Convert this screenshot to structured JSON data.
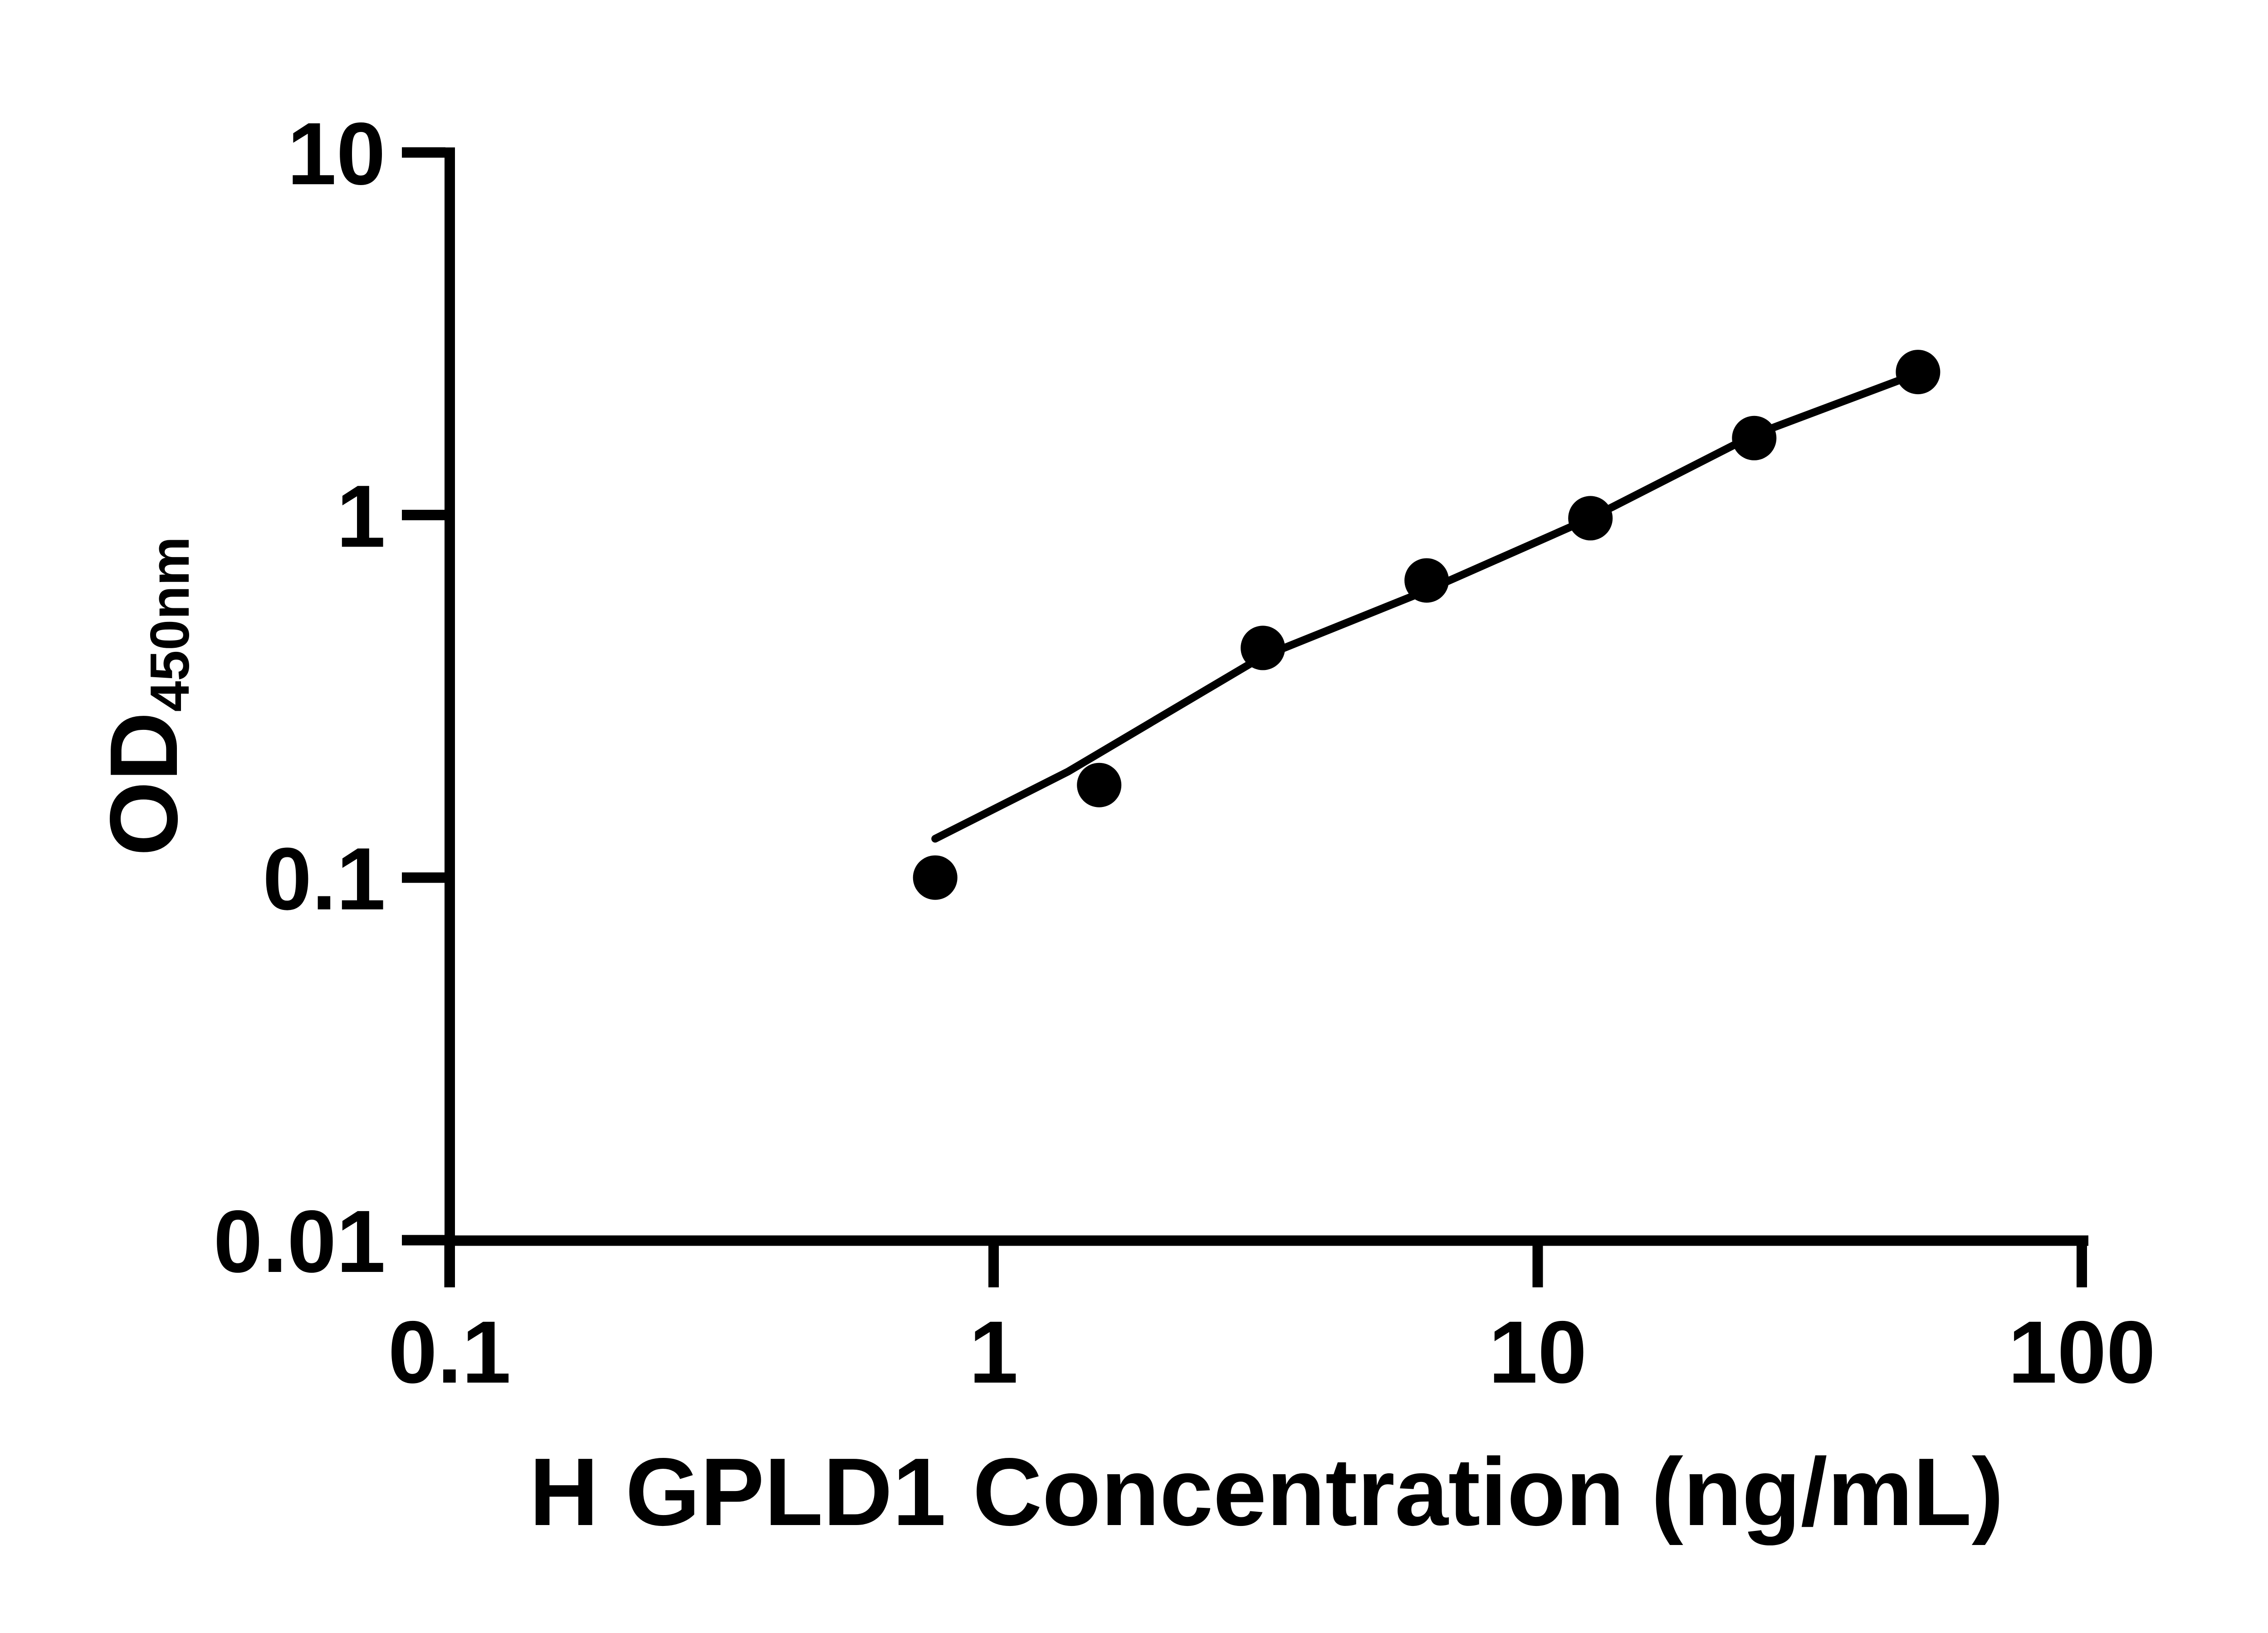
{
  "figure": {
    "background_color": "#ffffff",
    "ink_color": "#000000"
  },
  "chart_data": {
    "type": "scatter",
    "scale": "log-log",
    "title": "",
    "xlabel": "H GPLD1 Concentration (ng/mL)",
    "ylabel": "OD450nm",
    "ylabel_main": "OD",
    "ylabel_subscript": "450nm",
    "xlim": [
      0.1,
      100
    ],
    "ylim": [
      0.01,
      10
    ],
    "grid": false,
    "legend_position": "none",
    "x_ticks": {
      "values": [
        0.1,
        1,
        10,
        100
      ],
      "labels": [
        "0.1",
        "1",
        "10",
        "100"
      ]
    },
    "y_ticks": {
      "values": [
        10,
        1,
        0.1,
        0.01
      ],
      "labels": [
        "10",
        "1",
        "0.1",
        "0.01"
      ]
    },
    "series": [
      {
        "name": "standard-points",
        "kind": "points",
        "marker": "filled-circle",
        "color": "#000000",
        "x": [
          0.781,
          1.563,
          3.125,
          6.25,
          12.5,
          25,
          50
        ],
        "y": [
          0.1,
          0.18,
          0.43,
          0.66,
          0.98,
          1.63,
          2.48
        ]
      },
      {
        "name": "fit-curve",
        "kind": "line",
        "color": "#000000",
        "x": [
          0.781,
          1.37,
          3.11,
          6.23,
          12.5,
          25,
          50
        ],
        "y": [
          0.128,
          0.196,
          0.406,
          0.618,
          0.98,
          1.665,
          2.46
        ]
      }
    ]
  }
}
